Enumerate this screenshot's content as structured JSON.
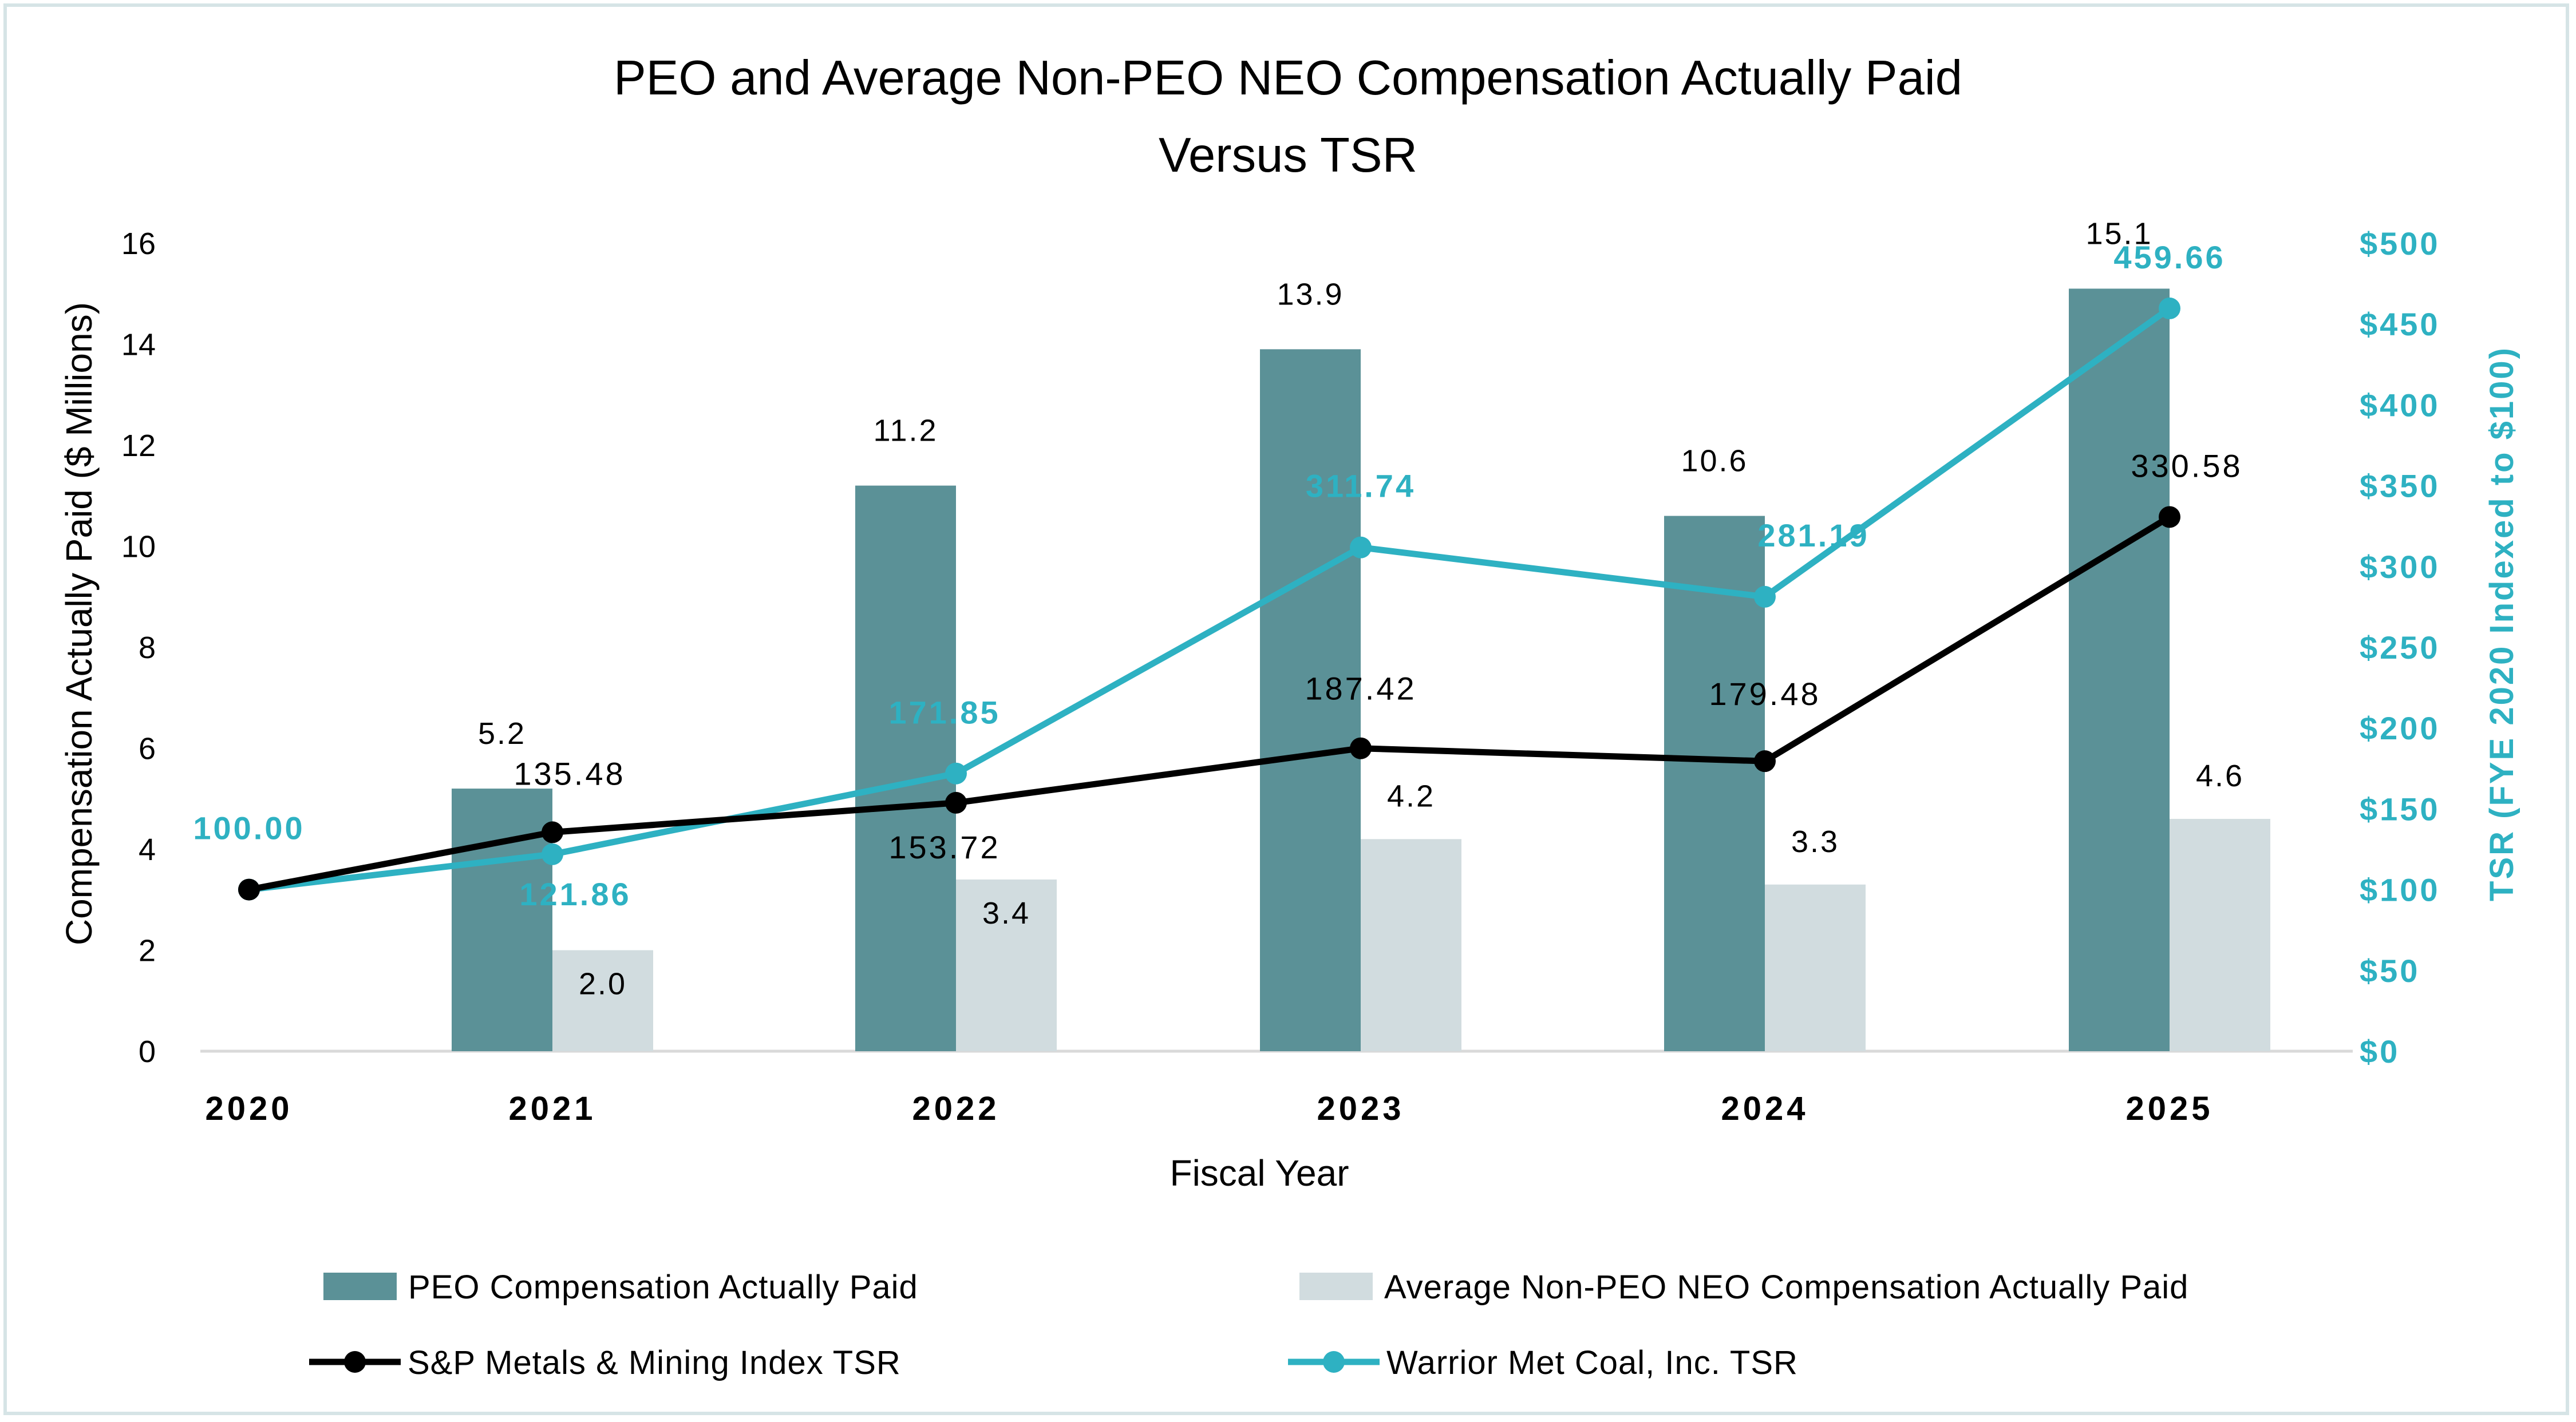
{
  "chart_data": {
    "type": "bar+line",
    "title": [
      "PEO and Average Non-PEO NEO Compensation Actually Paid",
      "Versus TSR"
    ],
    "xlabel": "Fiscal Year",
    "ylabel": "Compensation Actually Paid ($ Millions)",
    "y2label": "TSR (FYE 2020 Indexed to $100)",
    "categories": [
      "2020",
      "2021",
      "2022",
      "2023",
      "2024",
      "2025"
    ],
    "ylim": [
      0,
      16
    ],
    "y_ticks": [
      "0",
      "2",
      "4",
      "6",
      "8",
      "10",
      "12",
      "14",
      "16"
    ],
    "y2lim": [
      0,
      500
    ],
    "y2_ticks": [
      "$0",
      "$50",
      "$100",
      "$150",
      "$200",
      "$250",
      "$300",
      "$350",
      "$400",
      "$450",
      "$500"
    ],
    "bar_series": [
      {
        "name": "PEO Compensation Actually Paid",
        "color": "#5b9197",
        "values": [
          null,
          5.2,
          11.2,
          13.9,
          10.6,
          15.1
        ],
        "labels": [
          "",
          "5.2",
          "11.2",
          "13.9",
          "10.6",
          "15.1"
        ]
      },
      {
        "name": "Average Non-PEO NEO Compensation Actually Paid",
        "color": "#d1dcdf",
        "values": [
          null,
          2.0,
          3.4,
          4.2,
          3.3,
          4.6
        ],
        "labels": [
          "",
          "2.0",
          "3.4",
          "4.2",
          "3.3",
          "4.6"
        ]
      }
    ],
    "line_series": [
      {
        "name": "S&P Metals & Mining Index TSR",
        "color": "#000000",
        "values": [
          100.0,
          135.48,
          153.72,
          187.42,
          179.48,
          330.58
        ],
        "labels": [
          "",
          "135.48",
          "153.72",
          "187.42",
          "179.48",
          "330.58"
        ]
      },
      {
        "name": "Warrior Met Coal, Inc. TSR",
        "color": "#2eb1c2",
        "values": [
          100.0,
          121.86,
          171.85,
          311.74,
          281.19,
          459.66
        ],
        "labels": [
          "100.00",
          "121.86",
          "171.85",
          "311.74",
          "281.19",
          "459.66"
        ]
      }
    ],
    "legend": [
      "PEO Compensation Actually Paid",
      "Average Non-PEO NEO Compensation Actually Paid",
      "S&P Metals & Mining Index TSR",
      "Warrior Met Coal, Inc. TSR"
    ]
  }
}
